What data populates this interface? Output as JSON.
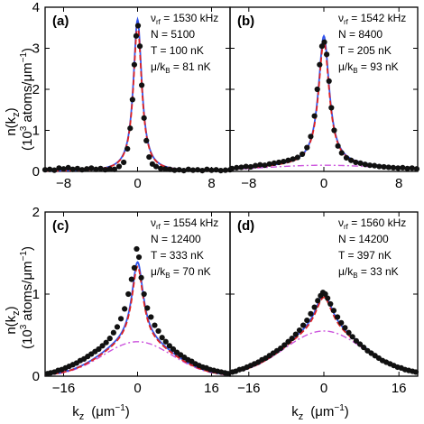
{
  "figure": {
    "ylabel_main": "n(k",
    "ylabel_sub": "z",
    "ylabel_unit": "(10",
    "ylabel_unit_sup": "3",
    "ylabel_unit_rest": " atoms/μm",
    "ylabel_unit_sup2": "−1",
    "ylabel_unit_end": ")",
    "xlabel_main": "k",
    "xlabel_sub": "z",
    "xlabel_unit": "(μm",
    "xlabel_unit_sup": "−1",
    "xlabel_unit_end": ")"
  },
  "chart_data": [
    {
      "type": "scatter",
      "panel": "(a)",
      "info": {
        "nu_rf": "= 1530 kHz",
        "N": "N = 5100",
        "T": "T = 100 nK",
        "mu": "= 81 nK"
      },
      "xlim": [
        -10,
        10
      ],
      "ylim": [
        0,
        4
      ],
      "xticks": [
        -8,
        0,
        8
      ],
      "yticks": [
        0,
        1,
        2,
        3,
        4
      ],
      "x_ticklabels": [
        "−8",
        "0",
        "8"
      ],
      "y_ticklabels": [
        "0",
        "1",
        "2",
        "3",
        "4"
      ],
      "fit": {
        "peak": 3.7,
        "width": 0.55,
        "wing_amp": 0.0,
        "wing_width": 6
      },
      "points": [
        [
          -10,
          0.04
        ],
        [
          -9.5,
          0.05
        ],
        [
          -9,
          0.03
        ],
        [
          -8.5,
          0.08
        ],
        [
          -8,
          0.06
        ],
        [
          -7.5,
          0.09
        ],
        [
          -7,
          0.05
        ],
        [
          -6.5,
          0.07
        ],
        [
          -6,
          0.04
        ],
        [
          -5.5,
          0.06
        ],
        [
          -5,
          0.08
        ],
        [
          -4.5,
          0.05
        ],
        [
          -4,
          0.07
        ],
        [
          -3.5,
          0.04
        ],
        [
          -3,
          0.06
        ],
        [
          -2.5,
          0.05
        ],
        [
          -2,
          0.12
        ],
        [
          -1.5,
          0.22
        ],
        [
          -1.1,
          0.55
        ],
        [
          -0.8,
          1.05
        ],
        [
          -0.55,
          1.75
        ],
        [
          -0.35,
          2.6
        ],
        [
          -0.15,
          3.3
        ],
        [
          0.05,
          3.55
        ],
        [
          0.25,
          3.05
        ],
        [
          0.45,
          2.1
        ],
        [
          0.7,
          1.3
        ],
        [
          0.95,
          0.75
        ],
        [
          1.25,
          0.35
        ],
        [
          1.6,
          0.18
        ],
        [
          2,
          0.12
        ],
        [
          2.5,
          0.07
        ],
        [
          3,
          0.06
        ],
        [
          3.5,
          0.05
        ],
        [
          4,
          0.03
        ],
        [
          4.5,
          0.04
        ],
        [
          5,
          0.02
        ],
        [
          5.5,
          0.05
        ],
        [
          6,
          0.03
        ],
        [
          6.5,
          0.04
        ],
        [
          7,
          0.02
        ],
        [
          7.5,
          0.05
        ],
        [
          8,
          0.03
        ],
        [
          8.5,
          0.04
        ],
        [
          9,
          0.02
        ],
        [
          9.5,
          0.03
        ],
        [
          10,
          0.04
        ]
      ]
    },
    {
      "type": "scatter",
      "panel": "(b)",
      "info": {
        "nu_rf": "= 1542 kHz",
        "N": "N = 8400",
        "T": "T = 205 nK",
        "mu": "= 93 nK"
      },
      "xlim": [
        -10,
        10
      ],
      "ylim": [
        0,
        4
      ],
      "xticks": [
        -8,
        0,
        8
      ],
      "yticks": [
        0,
        1,
        2,
        3,
        4
      ],
      "x_ticklabels": [
        "−8",
        "0",
        "8"
      ],
      "y_ticklabels": [],
      "fit": {
        "peak": 3.15,
        "width": 0.7,
        "wing_amp": 0.15,
        "wing_width": 6.5
      },
      "points": [
        [
          -9.8,
          0.07
        ],
        [
          -9.3,
          0.09
        ],
        [
          -8.8,
          0.1
        ],
        [
          -8.3,
          0.12
        ],
        [
          -7.8,
          0.11
        ],
        [
          -7.3,
          0.14
        ],
        [
          -6.8,
          0.16
        ],
        [
          -6.3,
          0.15
        ],
        [
          -5.8,
          0.18
        ],
        [
          -5.3,
          0.2
        ],
        [
          -4.8,
          0.22
        ],
        [
          -4.3,
          0.24
        ],
        [
          -3.8,
          0.27
        ],
        [
          -3.3,
          0.3
        ],
        [
          -2.8,
          0.34
        ],
        [
          -2.3,
          0.42
        ],
        [
          -1.8,
          0.58
        ],
        [
          -1.4,
          0.85
        ],
        [
          -1.0,
          1.35
        ],
        [
          -0.7,
          2.0
        ],
        [
          -0.45,
          2.6
        ],
        [
          -0.2,
          3.05
        ],
        [
          0.05,
          3.15
        ],
        [
          0.3,
          2.85
        ],
        [
          0.55,
          2.2
        ],
        [
          0.8,
          1.55
        ],
        [
          1.1,
          1.0
        ],
        [
          1.5,
          0.62
        ],
        [
          1.9,
          0.45
        ],
        [
          2.4,
          0.33
        ],
        [
          2.9,
          0.27
        ],
        [
          3.4,
          0.22
        ],
        [
          3.9,
          0.2
        ],
        [
          4.4,
          0.17
        ],
        [
          4.9,
          0.15
        ],
        [
          5.4,
          0.14
        ],
        [
          5.9,
          0.12
        ],
        [
          6.4,
          0.11
        ],
        [
          6.9,
          0.1
        ],
        [
          7.4,
          0.09
        ],
        [
          7.9,
          0.08
        ],
        [
          8.4,
          0.09
        ],
        [
          8.9,
          0.07
        ],
        [
          9.4,
          0.08
        ],
        [
          9.9,
          0.06
        ]
      ]
    },
    {
      "type": "scatter",
      "panel": "(c)",
      "info": {
        "nu_rf": "= 1554 kHz",
        "N": "N = 12400",
        "T": "T = 333 nK",
        "mu": "= 70 nK"
      },
      "xlim": [
        -20,
        20
      ],
      "ylim": [
        0,
        2
      ],
      "xticks": [
        -16,
        0,
        16
      ],
      "yticks": [
        0,
        1,
        2
      ],
      "x_ticklabels": [
        "−16",
        "0",
        "16"
      ],
      "y_ticklabels": [
        "0",
        "1",
        "2"
      ],
      "fit": {
        "peak": 0.97,
        "width": 1.5,
        "wing_amp": 0.42,
        "wing_width": 7.5
      },
      "points": [
        [
          -19.5,
          0.03
        ],
        [
          -18.8,
          0.04
        ],
        [
          -18,
          0.05
        ],
        [
          -17.2,
          0.07
        ],
        [
          -16.4,
          0.08
        ],
        [
          -15.6,
          0.1
        ],
        [
          -14.8,
          0.12
        ],
        [
          -14,
          0.14
        ],
        [
          -13.2,
          0.16
        ],
        [
          -12.4,
          0.19
        ],
        [
          -11.6,
          0.21
        ],
        [
          -10.8,
          0.24
        ],
        [
          -10,
          0.27
        ],
        [
          -9.2,
          0.3
        ],
        [
          -8.4,
          0.33
        ],
        [
          -7.6,
          0.37
        ],
        [
          -6.8,
          0.41
        ],
        [
          -6,
          0.46
        ],
        [
          -5.2,
          0.53
        ],
        [
          -4.4,
          0.6
        ],
        [
          -3.6,
          0.7
        ],
        [
          -2.8,
          0.82
        ],
        [
          -2.0,
          1.0
        ],
        [
          -1.3,
          1.18
        ],
        [
          -0.7,
          1.32
        ],
        [
          -0.2,
          1.55
        ],
        [
          0.3,
          1.45
        ],
        [
          0.8,
          1.2
        ],
        [
          1.4,
          1.0
        ],
        [
          2.1,
          0.83
        ],
        [
          2.9,
          0.72
        ],
        [
          3.7,
          0.62
        ],
        [
          4.5,
          0.55
        ],
        [
          5.3,
          0.47
        ],
        [
          6.1,
          0.42
        ],
        [
          6.9,
          0.37
        ],
        [
          7.7,
          0.33
        ],
        [
          8.5,
          0.29
        ],
        [
          9.3,
          0.26
        ],
        [
          10.1,
          0.23
        ],
        [
          10.9,
          0.2
        ],
        [
          11.7,
          0.18
        ],
        [
          12.5,
          0.15
        ],
        [
          13.3,
          0.13
        ],
        [
          14.1,
          0.11
        ],
        [
          14.9,
          0.1
        ],
        [
          15.7,
          0.08
        ],
        [
          16.5,
          0.07
        ],
        [
          17.3,
          0.06
        ],
        [
          18.1,
          0.05
        ],
        [
          18.9,
          0.04
        ],
        [
          19.6,
          0.03
        ]
      ]
    },
    {
      "type": "scatter",
      "panel": "(d)",
      "info": {
        "nu_rf": "= 1560 kHz",
        "N": "N = 14200",
        "T": "T = 397 nK",
        "mu": "= 33 nK"
      },
      "xlim": [
        -20,
        20
      ],
      "ylim": [
        0,
        2
      ],
      "xticks": [
        -16,
        0,
        16
      ],
      "yticks": [
        0,
        1,
        2
      ],
      "x_ticklabels": [
        "−16",
        "0",
        "16"
      ],
      "y_ticklabels": [],
      "fit": {
        "peak": 0.45,
        "width": 2.2,
        "wing_amp": 0.55,
        "wing_width": 8.5
      },
      "points": [
        [
          -19.5,
          0.05
        ],
        [
          -18.8,
          0.06
        ],
        [
          -18,
          0.08
        ],
        [
          -17.2,
          0.09
        ],
        [
          -16.4,
          0.11
        ],
        [
          -15.6,
          0.13
        ],
        [
          -14.8,
          0.15
        ],
        [
          -14,
          0.17
        ],
        [
          -13.2,
          0.2
        ],
        [
          -12.4,
          0.22
        ],
        [
          -11.6,
          0.25
        ],
        [
          -10.8,
          0.28
        ],
        [
          -10,
          0.31
        ],
        [
          -9.2,
          0.34
        ],
        [
          -8.4,
          0.38
        ],
        [
          -7.6,
          0.42
        ],
        [
          -6.8,
          0.46
        ],
        [
          -6,
          0.51
        ],
        [
          -5.2,
          0.56
        ],
        [
          -4.4,
          0.62
        ],
        [
          -3.6,
          0.68
        ],
        [
          -2.8,
          0.76
        ],
        [
          -2.0,
          0.84
        ],
        [
          -1.3,
          0.92
        ],
        [
          -0.7,
          0.98
        ],
        [
          -0.2,
          1.02
        ],
        [
          0.3,
          1.0
        ],
        [
          0.8,
          0.95
        ],
        [
          1.4,
          0.88
        ],
        [
          2.1,
          0.8
        ],
        [
          2.9,
          0.72
        ],
        [
          3.7,
          0.65
        ],
        [
          4.5,
          0.59
        ],
        [
          5.3,
          0.53
        ],
        [
          6.1,
          0.48
        ],
        [
          6.9,
          0.43
        ],
        [
          7.7,
          0.39
        ],
        [
          8.5,
          0.35
        ],
        [
          9.3,
          0.31
        ],
        [
          10.1,
          0.28
        ],
        [
          10.9,
          0.25
        ],
        [
          11.7,
          0.22
        ],
        [
          12.5,
          0.19
        ],
        [
          13.3,
          0.17
        ],
        [
          14.1,
          0.15
        ],
        [
          14.9,
          0.13
        ],
        [
          15.7,
          0.11
        ],
        [
          16.5,
          0.1
        ],
        [
          17.3,
          0.08
        ],
        [
          18.1,
          0.07
        ],
        [
          18.9,
          0.06
        ],
        [
          19.6,
          0.05
        ]
      ]
    }
  ]
}
